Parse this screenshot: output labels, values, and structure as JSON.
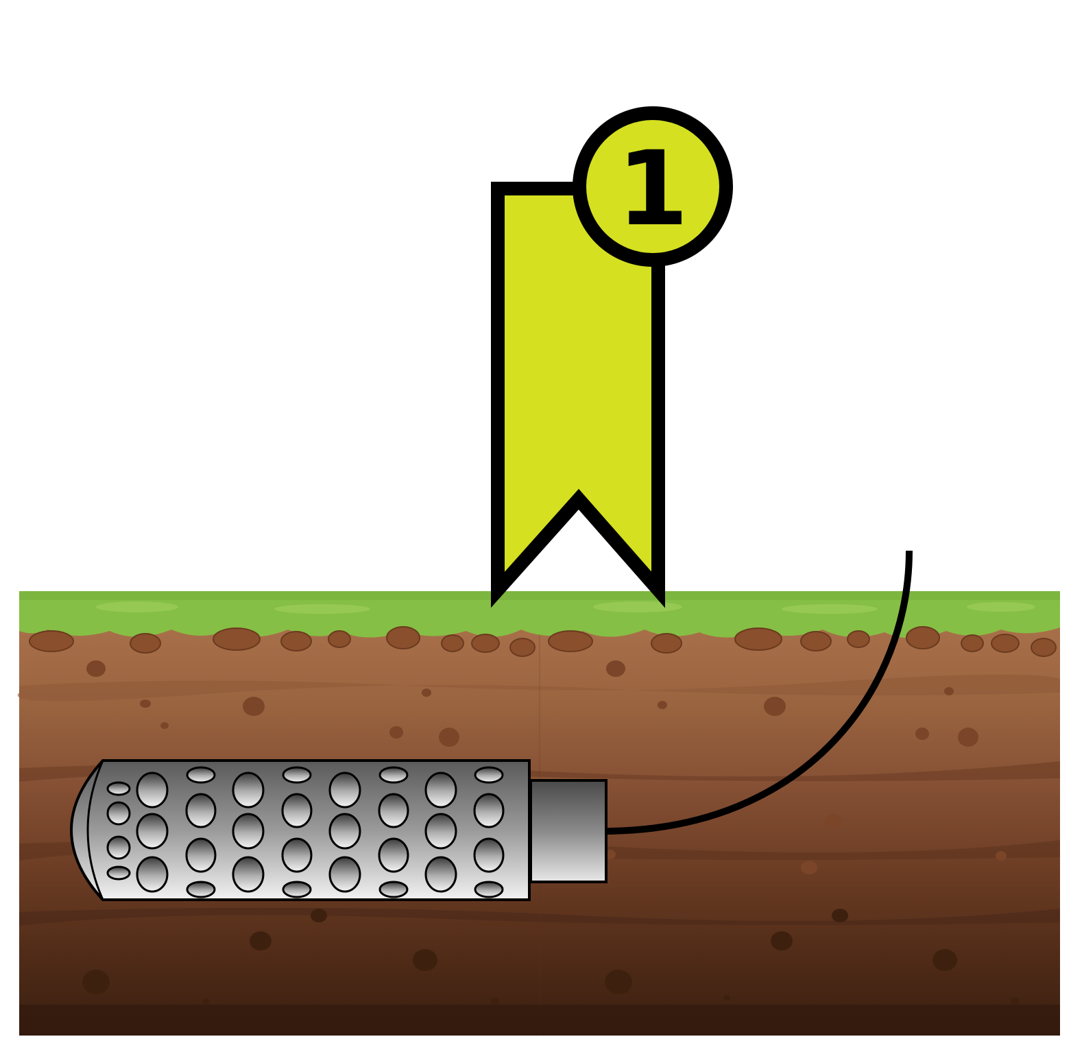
{
  "marker": {
    "number": "1",
    "flag_color": "#D5E021",
    "badge_color": "#D5E021",
    "outline_color": "#000000"
  },
  "scene": {
    "grass_color": "#86BF45",
    "soil_layers": [
      "#A06A43",
      "#8A5535",
      "#6E3E24",
      "#4F2A17",
      "#3A1E10"
    ],
    "sensor_body_color": "#8C8C8C",
    "cable_color": "#000000",
    "icons": [
      "ribbon-flag-icon",
      "number-badge-icon",
      "soil-sensor-icon",
      "cable-icon"
    ]
  }
}
